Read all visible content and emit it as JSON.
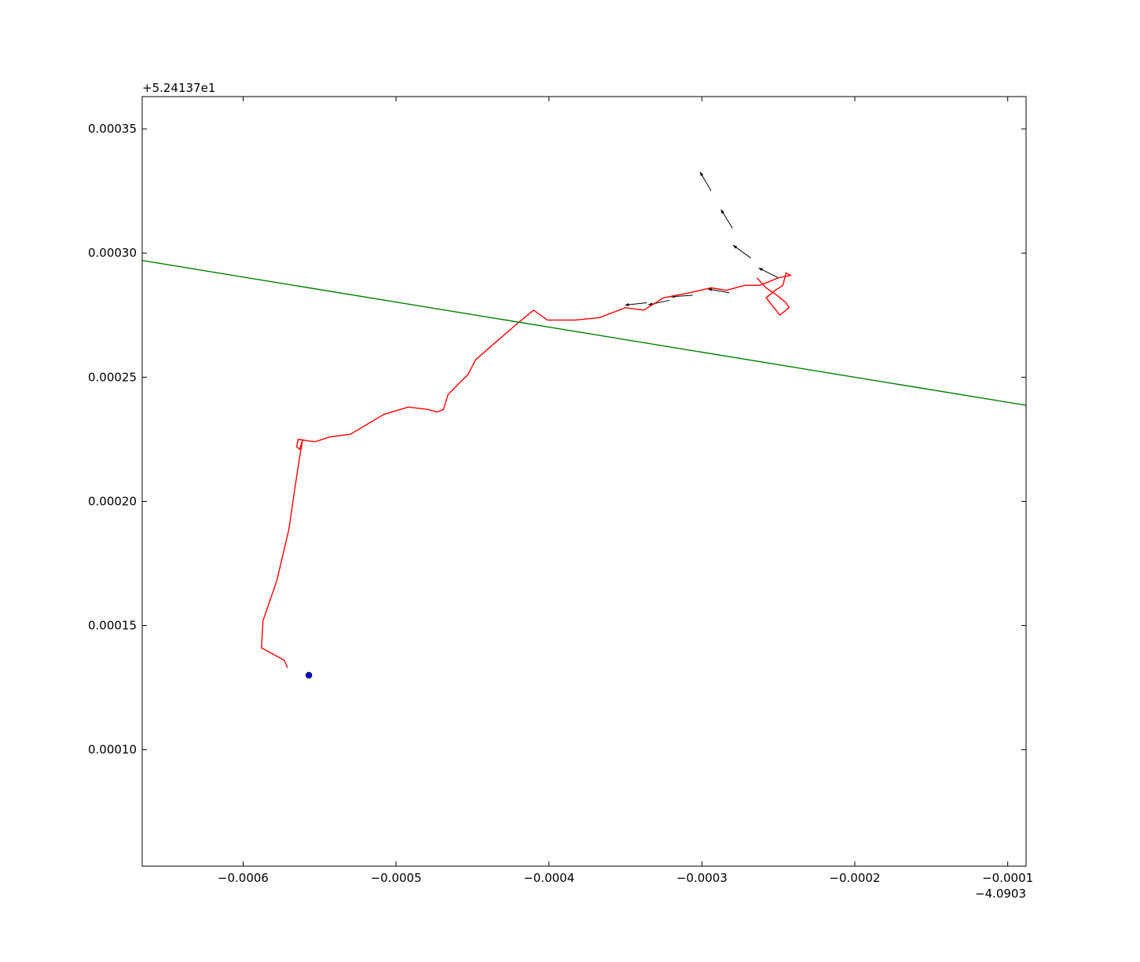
{
  "chart_data": {
    "type": "line",
    "title": "",
    "xlabel": "",
    "ylabel": "",
    "x_offset_label": "−4.0903",
    "y_offset_label": "+5.24137e1",
    "xlim": [
      -0.000666,
      -8.8e-05
    ],
    "ylim": [
      5.31e-05,
      0.000363
    ],
    "x_ticks": [
      -0.0006,
      -0.0005,
      -0.0004,
      -0.0003,
      -0.0002,
      -0.0001
    ],
    "x_tick_labels": [
      "−0.0006",
      "−0.0005",
      "−0.0004",
      "−0.0003",
      "−0.0002",
      "−0.0001"
    ],
    "y_ticks": [
      0.0001,
      0.00015,
      0.0002,
      0.00025,
      0.0003,
      0.00035
    ],
    "y_tick_labels": [
      "0.00010",
      "0.00015",
      "0.00020",
      "0.00025",
      "0.00030",
      "0.00035"
    ],
    "grid": false,
    "colors": {
      "track": "#ff0000",
      "line": "#008000",
      "point": "#0000ff",
      "arrows": "#000000"
    },
    "reference_line": {
      "x": [
        -0.000666,
        -8.8e-05
      ],
      "y": [
        0.000297,
        0.0002387
      ]
    },
    "point": {
      "x": -0.000557,
      "y": 0.00013
    },
    "track": {
      "x": [
        -0.000264,
        -0.000258,
        -0.000251,
        -0.000245,
        -0.000243,
        -0.000249,
        -0.000258,
        -0.000252,
        -0.000247,
        -0.000245,
        -0.000242,
        -0.00025,
        -0.000262,
        -0.000272,
        -0.000284,
        -0.000294,
        -0.000308,
        -0.000325,
        -0.000338,
        -0.00035,
        -0.000367,
        -0.000383,
        -0.000401,
        -0.00041,
        -0.00042,
        -0.000435,
        -0.000448,
        -0.000453,
        -0.000458,
        -0.000466,
        -0.000469,
        -0.000473,
        -0.000479,
        -0.000492,
        -0.000508,
        -0.00053,
        -0.000543,
        -0.000553,
        -0.000564,
        -0.000565,
        -0.000563,
        -0.000561,
        -0.000563,
        -0.000566,
        -0.00057,
        -0.000578,
        -0.000587,
        -0.000588,
        -0.000573,
        -0.000571
      ],
      "y": [
        0.00029,
        0.000286,
        0.000283,
        0.00028,
        0.000278,
        0.000275,
        0.000282,
        0.000285,
        0.000287,
        0.000292,
        0.000291,
        0.00029,
        0.000287,
        0.000287,
        0.000285,
        0.000286,
        0.000284,
        0.000282,
        0.000277,
        0.000278,
        0.000274,
        0.000273,
        0.000273,
        0.000277,
        0.000272,
        0.000264,
        0.000257,
        0.000251,
        0.000248,
        0.000243,
        0.000237,
        0.000236,
        0.000237,
        0.000238,
        0.000235,
        0.000227,
        0.000226,
        0.000224,
        0.000225,
        0.000222,
        0.000221,
        0.000225,
        0.000218,
        0.000206,
        0.000189,
        0.000168,
        0.000152,
        0.000141,
        0.000136,
        0.000133
      ]
    },
    "arrows": [
      {
        "x": [
          -0.000294,
          -0.00028,
          -0.000268,
          -0.00025,
          -0.000234
        ],
        "y": [
          0.000325,
          0.00031,
          0.000298,
          0.00029,
          0.000285
        ]
      },
      {
        "x": [
          -0.000336,
          -0.000321,
          -0.000306,
          -0.000282,
          -0.000264
        ],
        "y": [
          0.00028,
          0.000281,
          0.000283,
          0.000284,
          0.000282
        ]
      }
    ]
  }
}
